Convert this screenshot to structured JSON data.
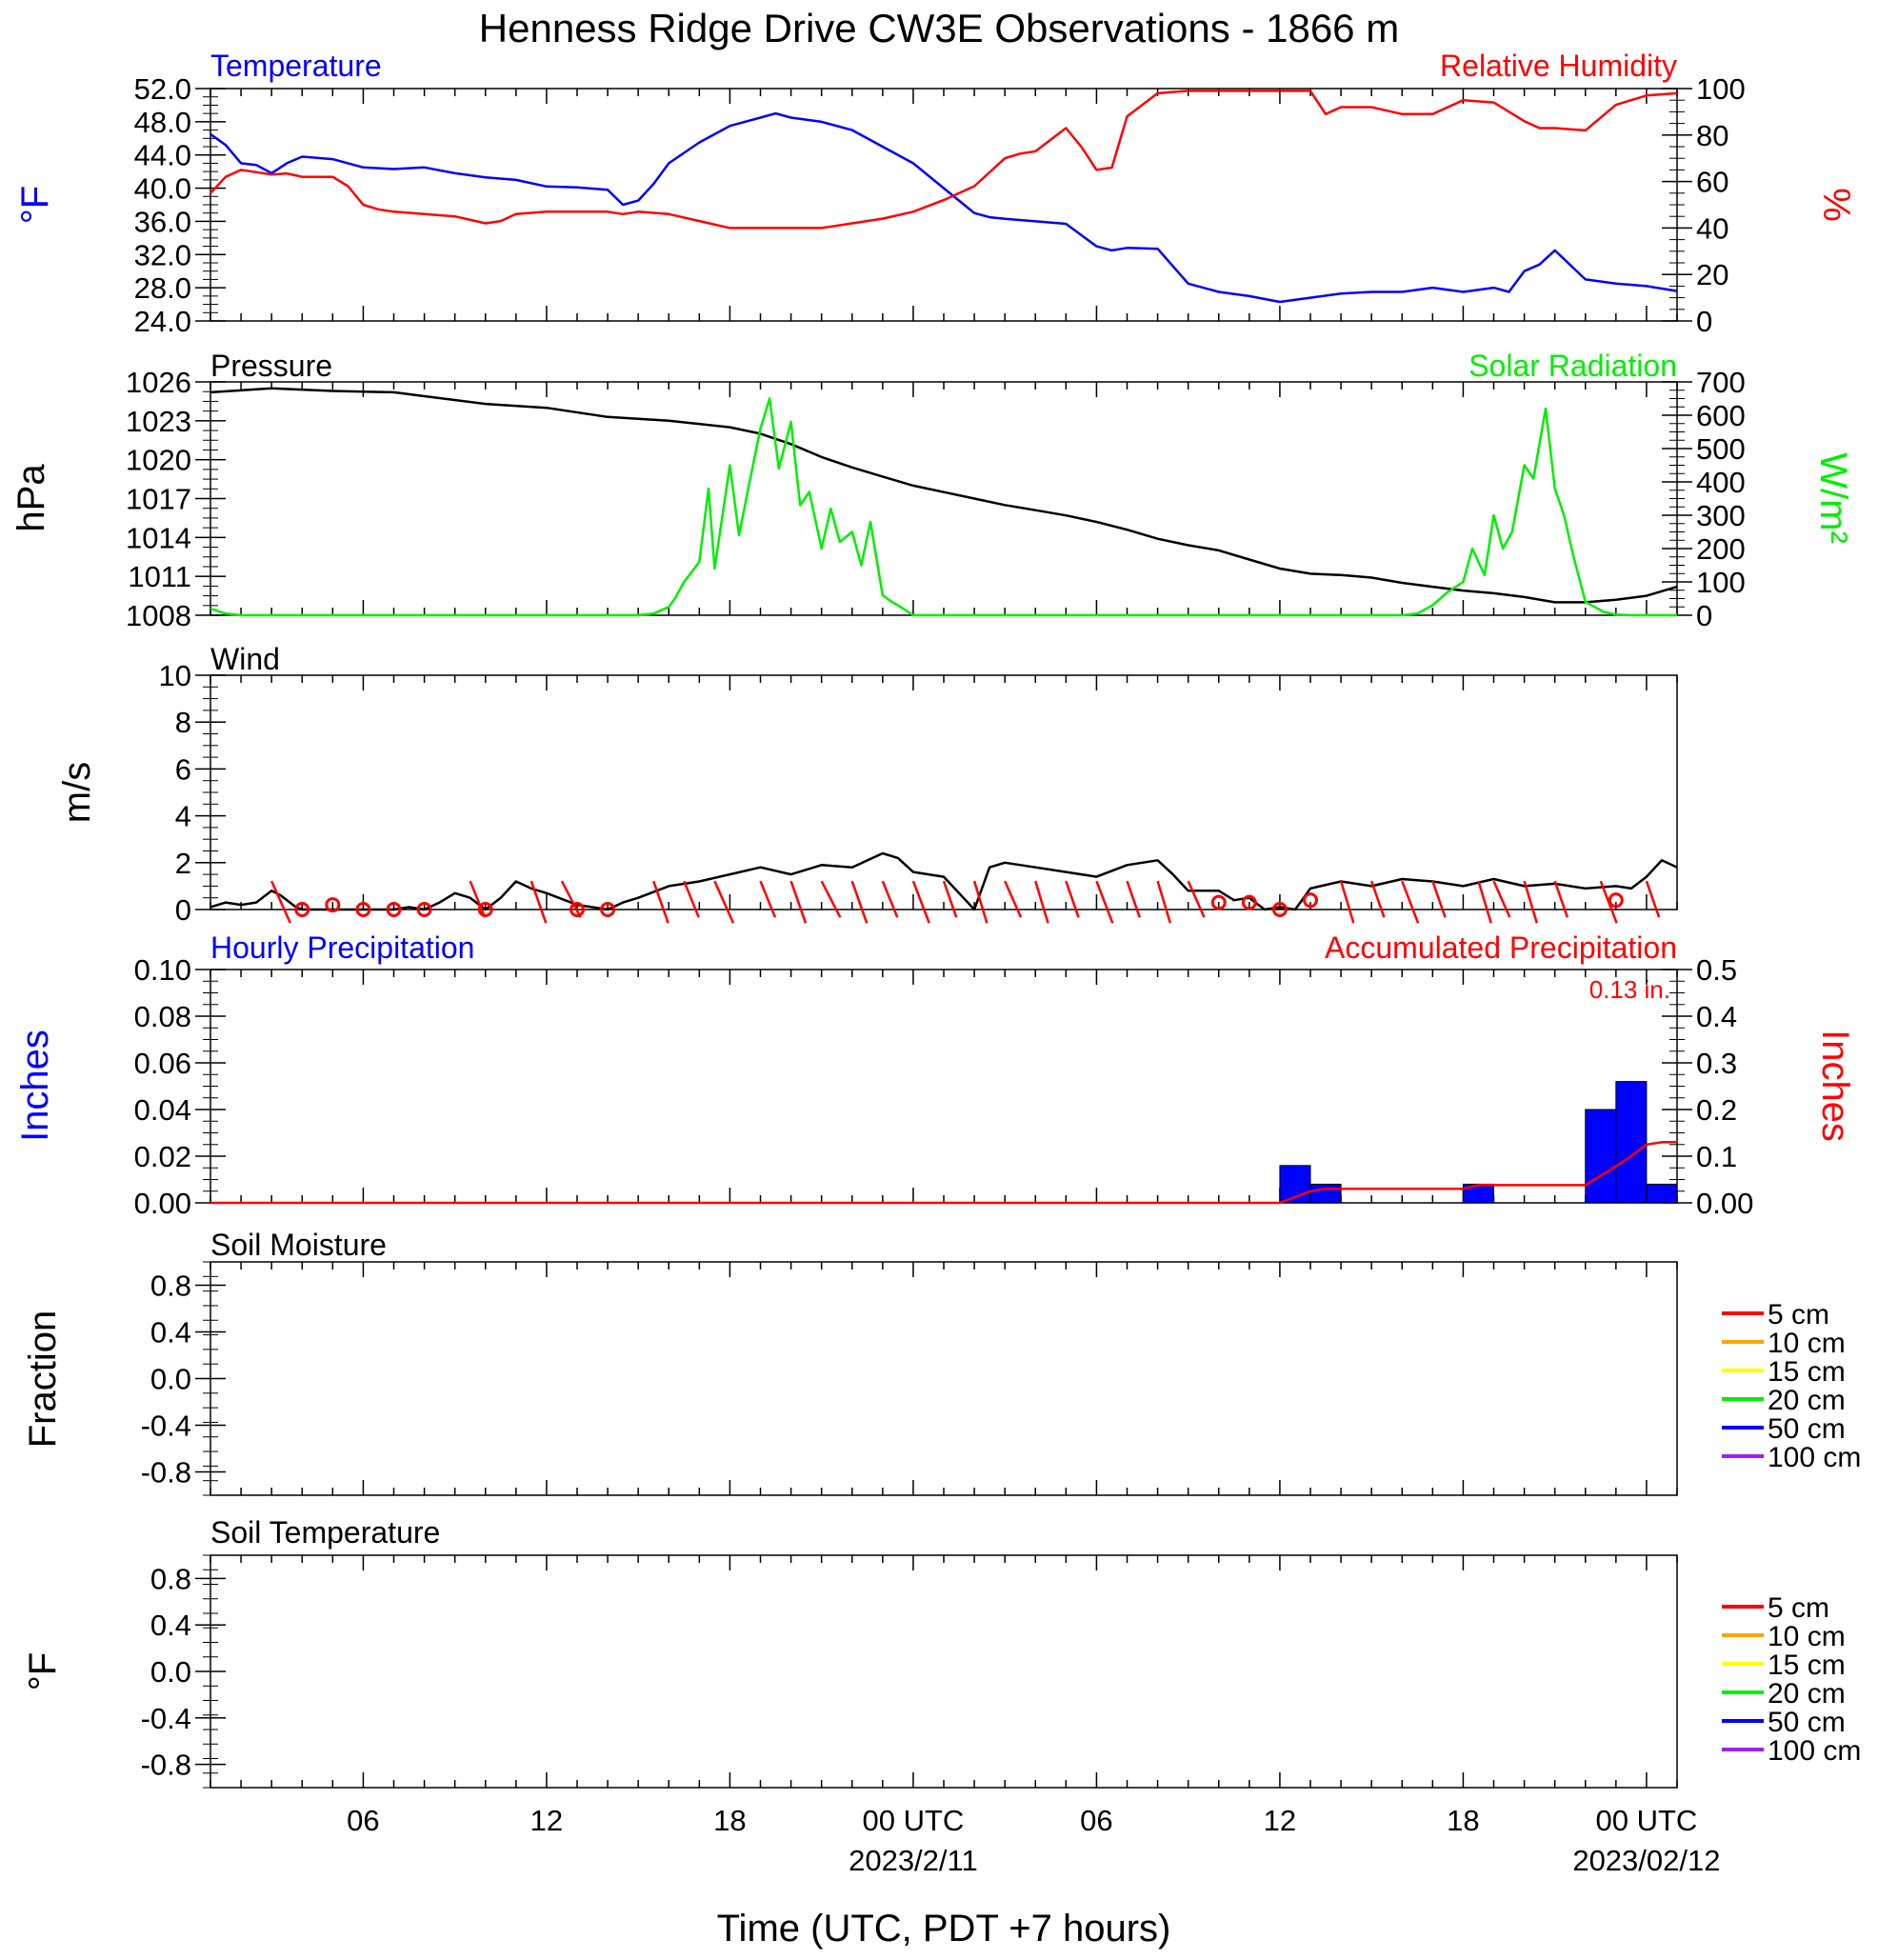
{
  "title": "Henness Ridge Drive CW3E Observations - 1866 m",
  "x_axis": {
    "title": "Time (UTC, PDT +7 hours)",
    "tick_labels": [
      "06",
      "12",
      "18",
      "00 UTC",
      "06",
      "12",
      "18",
      "00 UTC"
    ],
    "tick_hours": [
      6,
      12,
      18,
      24,
      30,
      36,
      42,
      48
    ],
    "date_labels": [
      {
        "hour": 24,
        "text": "2023/2/11"
      },
      {
        "hour": 48,
        "text": "2023/02/12"
      }
    ],
    "range_hours": [
      1,
      49
    ]
  },
  "colors": {
    "temperature": "#0000ff",
    "humidity": "#ff0000",
    "pressure": "#000000",
    "solar": "#00ee00",
    "wind": "#000000",
    "barb": "#ff0000",
    "hourly_precip": "#0000ff",
    "accum_precip": "#ff0000"
  },
  "chart_data": [
    {
      "type": "line",
      "panel": "temperature_humidity",
      "left_label": "Temperature",
      "right_label": "Relative Humidity",
      "ylabel_left": "°F",
      "ylabel_right": "%",
      "ylim_left": [
        24,
        52
      ],
      "ylim_right": [
        0,
        100
      ],
      "yticks_left": [
        "24.0",
        "28.0",
        "32.0",
        "36.0",
        "40.0",
        "44.0",
        "48.0",
        "52.0"
      ],
      "yticks_right": [
        "0",
        "20",
        "40",
        "60",
        "80",
        "100"
      ],
      "series": [
        {
          "name": "Temperature",
          "axis": "left",
          "x": [
            1,
            1.5,
            2,
            2.5,
            3,
            3.5,
            4,
            5,
            6,
            7,
            8,
            9,
            10,
            11,
            12,
            13,
            14,
            14.5,
            15,
            15.5,
            16,
            17,
            18,
            19,
            19.5,
            20,
            21,
            22,
            23,
            24,
            25,
            26,
            26.5,
            27,
            28,
            29,
            30,
            30.5,
            31,
            32,
            33,
            34,
            35,
            36,
            37,
            38,
            39,
            40,
            41,
            42,
            43,
            43.5,
            44,
            44.5,
            45,
            46,
            47,
            48,
            49
          ],
          "y": [
            46.5,
            45.2,
            43,
            42.8,
            41.8,
            43,
            43.8,
            43.5,
            42.5,
            42.3,
            42.5,
            41.8,
            41.3,
            41,
            40.2,
            40.1,
            39.8,
            38,
            38.5,
            40.5,
            43,
            45.5,
            47.5,
            48.5,
            49,
            48.5,
            48,
            47,
            45,
            43,
            40,
            37,
            36.5,
            36.3,
            36,
            35.7,
            33,
            32.5,
            32.8,
            32.7,
            28.5,
            27.5,
            27,
            26.3,
            26.8,
            27.3,
            27.5,
            27.5,
            28,
            27.5,
            28,
            27.5,
            30,
            30.8,
            32.5,
            29,
            28.5,
            28.2,
            27.6
          ]
        },
        {
          "name": "Relative Humidity",
          "axis": "right",
          "x": [
            1,
            1.5,
            2,
            2.5,
            3,
            3.5,
            4,
            5,
            5.5,
            6,
            6.5,
            7,
            8,
            9,
            10,
            10.5,
            11,
            12,
            13,
            14,
            14.5,
            15,
            16,
            17,
            18,
            19,
            20,
            21,
            22,
            23,
            24,
            25,
            26,
            27,
            27.5,
            28,
            29,
            29.5,
            30,
            30.5,
            31,
            32,
            33,
            34,
            35,
            36,
            37,
            37.5,
            38,
            39,
            40,
            41,
            42,
            43,
            44,
            44.5,
            45,
            46,
            47,
            48,
            49
          ],
          "y": [
            55,
            62,
            65,
            64,
            63,
            63.5,
            62,
            62,
            58,
            50,
            48,
            47,
            46,
            45,
            42,
            43,
            46,
            47,
            47,
            47,
            46,
            47,
            46,
            43,
            40,
            40,
            40,
            40,
            42,
            44,
            47,
            52,
            58,
            70,
            72,
            73,
            83,
            75,
            65,
            66,
            88,
            98,
            99,
            99,
            99,
            99,
            99,
            89,
            92,
            92,
            89,
            89,
            95,
            94,
            86,
            83,
            83,
            82,
            93,
            97,
            98
          ]
        }
      ]
    },
    {
      "type": "line",
      "panel": "pressure_solar",
      "left_label": "Pressure",
      "right_label": "Solar Radiation",
      "ylabel_left": "hPa",
      "ylabel_right": "W/m²",
      "ylim_left": [
        1008,
        1026
      ],
      "ylim_right": [
        0,
        700
      ],
      "yticks_left": [
        "1008",
        "1011",
        "1014",
        "1017",
        "1020",
        "1023",
        "1026"
      ],
      "yticks_right": [
        "0",
        "100",
        "200",
        "300",
        "400",
        "500",
        "600",
        "700"
      ],
      "series": [
        {
          "name": "Pressure",
          "axis": "left",
          "x": [
            1,
            3,
            5,
            7,
            8,
            10,
            12,
            14,
            16,
            18,
            19,
            20,
            21,
            22,
            23,
            24,
            25,
            26,
            27,
            28,
            29,
            30,
            31,
            32,
            33,
            34,
            35,
            36,
            37,
            38,
            39,
            40,
            41,
            42,
            43,
            44,
            45,
            46,
            47,
            48,
            49
          ],
          "y": [
            1025.2,
            1025.5,
            1025.3,
            1025.2,
            1024.9,
            1024.3,
            1024,
            1023.3,
            1023,
            1022.5,
            1022,
            1021.2,
            1020.2,
            1019.4,
            1018.7,
            1018,
            1017.5,
            1017,
            1016.5,
            1016.1,
            1015.7,
            1015.2,
            1014.6,
            1013.9,
            1013.4,
            1013,
            1012.3,
            1011.6,
            1011.2,
            1011.1,
            1010.9,
            1010.5,
            1010.2,
            1009.9,
            1009.7,
            1009.4,
            1009,
            1009,
            1009.2,
            1009.5,
            1010.2
          ]
        },
        {
          "name": "Solar Radiation",
          "axis": "right",
          "x": [
            1,
            1.5,
            2,
            4,
            6,
            8,
            10,
            12,
            14,
            15,
            15.5,
            16,
            16.2,
            16.5,
            17,
            17.3,
            17.5,
            18,
            18.3,
            18.6,
            19,
            19.3,
            19.6,
            20,
            20.3,
            20.6,
            21,
            21.3,
            21.6,
            22,
            22.3,
            22.6,
            23,
            23.3,
            23.5,
            24,
            25,
            26,
            28,
            30,
            32,
            34,
            36,
            38,
            39,
            40,
            40.5,
            41,
            41.5,
            42,
            42.3,
            42.7,
            43,
            43.3,
            43.6,
            44,
            44.3,
            44.7,
            45,
            45.3,
            45.6,
            46,
            46.3,
            46.6,
            47,
            47.5,
            48,
            49
          ],
          "y": [
            20,
            5,
            0,
            0,
            0,
            0,
            0,
            0,
            0,
            0,
            5,
            25,
            50,
            100,
            160,
            380,
            140,
            450,
            240,
            380,
            560,
            650,
            440,
            580,
            330,
            370,
            200,
            320,
            220,
            250,
            150,
            280,
            60,
            40,
            30,
            0,
            0,
            0,
            0,
            0,
            0,
            0,
            0,
            0,
            0,
            0,
            5,
            30,
            70,
            100,
            200,
            120,
            300,
            200,
            250,
            450,
            410,
            620,
            380,
            300,
            180,
            40,
            25,
            10,
            2,
            0,
            0,
            0
          ]
        }
      ]
    },
    {
      "type": "line",
      "panel": "wind",
      "left_label": "Wind",
      "ylabel_left": "m/s",
      "ylim_left": [
        0,
        10
      ],
      "yticks_left": [
        "0",
        "2",
        "4",
        "6",
        "8",
        "10"
      ],
      "series": [
        {
          "name": "Wind",
          "axis": "left",
          "x": [
            1,
            1.5,
            2,
            2.5,
            3,
            3.3,
            3.8,
            4,
            5,
            6,
            7,
            7.5,
            8,
            8.5,
            9,
            9.5,
            10,
            10.5,
            11,
            11.5,
            12,
            13,
            13.5,
            14,
            14.5,
            15,
            16,
            17,
            18,
            19,
            20,
            21,
            22,
            23,
            23.5,
            24,
            25,
            26,
            26.5,
            27,
            28,
            29,
            30,
            31,
            32,
            32.5,
            33,
            34,
            34.5,
            35,
            35.5,
            36,
            36.5,
            37,
            38,
            39,
            40,
            41,
            42,
            43,
            44,
            45,
            46,
            47,
            47.5,
            48,
            48.5,
            49
          ],
          "y": [
            0.1,
            0.3,
            0.2,
            0.3,
            0.8,
            0.6,
            0.1,
            0,
            0,
            0,
            0,
            0.1,
            0,
            0.3,
            0.7,
            0.5,
            0,
            0.5,
            1.2,
            0.9,
            0.7,
            0.2,
            0.1,
            0,
            0.3,
            0.5,
            1,
            1.2,
            1.5,
            1.8,
            1.5,
            1.9,
            1.8,
            2.4,
            2.2,
            1.6,
            1.4,
            0,
            1.8,
            2,
            1.8,
            1.6,
            1.4,
            1.9,
            2.1,
            1.5,
            0.8,
            0.8,
            0.4,
            0.5,
            0,
            0.1,
            0,
            0.9,
            1.2,
            1,
            1.3,
            1.2,
            1.0,
            1.3,
            1.0,
            1.1,
            0.9,
            1.0,
            0.9,
            1.4,
            2.1,
            1.8
          ]
        },
        {
          "name": "Calm",
          "axis": "left",
          "x": [
            4,
            5,
            6,
            7,
            8,
            10,
            13,
            14,
            34,
            35,
            36,
            37,
            47
          ],
          "y": [
            0,
            0.2,
            0,
            0,
            0,
            0,
            0,
            0,
            0.3,
            0.3,
            0,
            0.4,
            0.4
          ]
        }
      ]
    },
    {
      "type": "bar",
      "panel": "precipitation",
      "left_label": "Hourly Precipitation",
      "right_label": "Accumulated Precipitation",
      "annotation": "0.13 in.",
      "ylabel_left": "Inches",
      "ylabel_right": "Inches",
      "ylim_left": [
        0,
        0.1
      ],
      "ylim_right": [
        0,
        0.5
      ],
      "yticks_left": [
        "0.00",
        "0.02",
        "0.04",
        "0.06",
        "0.08",
        "0.10"
      ],
      "yticks_right": [
        "0.00",
        "0.1",
        "0.2",
        "0.3",
        "0.4",
        "0.5"
      ],
      "series": [
        {
          "name": "Hourly Precipitation",
          "axis": "left",
          "start_hour": [
            36,
            37,
            42,
            46,
            47,
            48
          ],
          "values": [
            0.016,
            0.008,
            0.008,
            0.04,
            0.052,
            0.008
          ]
        },
        {
          "name": "Accumulated Precipitation",
          "axis": "right",
          "x": [
            1,
            36,
            37,
            37.5,
            42,
            42.5,
            46,
            46.8,
            47.5,
            48,
            48.5,
            49
          ],
          "y": [
            0,
            0,
            0.025,
            0.03,
            0.03,
            0.038,
            0.038,
            0.07,
            0.1,
            0.125,
            0.13,
            0.13
          ]
        }
      ]
    },
    {
      "type": "line",
      "panel": "soil_moisture",
      "left_label": "Soil Moisture",
      "ylabel_left": "Fraction",
      "ylim_left": [
        -1,
        1
      ],
      "yticks_left": [
        "-0.8",
        "-0.4",
        "0.0",
        "0.4",
        "0.8"
      ],
      "legend": [
        {
          "label": "5 cm",
          "color": "#ff0000"
        },
        {
          "label": "10 cm",
          "color": "#ffa500"
        },
        {
          "label": "15 cm",
          "color": "#ffff00"
        },
        {
          "label": "20 cm",
          "color": "#00ee00"
        },
        {
          "label": "50 cm",
          "color": "#0000ff"
        },
        {
          "label": "100 cm",
          "color": "#a020f0"
        }
      ],
      "series": []
    },
    {
      "type": "line",
      "panel": "soil_temperature",
      "left_label": "Soil Temperature",
      "ylabel_left": "°F",
      "ylim_left": [
        -1,
        1
      ],
      "yticks_left": [
        "-0.8",
        "-0.4",
        "0.0",
        "0.4",
        "0.8"
      ],
      "legend": [
        {
          "label": "5 cm",
          "color": "#ff0000"
        },
        {
          "label": "10 cm",
          "color": "#ffa500"
        },
        {
          "label": "15 cm",
          "color": "#ffff00"
        },
        {
          "label": "20 cm",
          "color": "#00ee00"
        },
        {
          "label": "50 cm",
          "color": "#0000ff"
        },
        {
          "label": "100 cm",
          "color": "#a020f0"
        }
      ],
      "series": []
    }
  ]
}
